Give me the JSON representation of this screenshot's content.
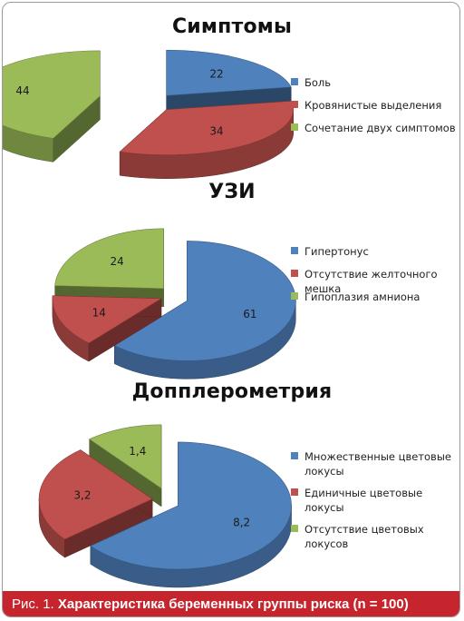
{
  "chart_data": [
    {
      "type": "pie",
      "title": "Симптомы",
      "categories": [
        "Боль",
        "Кровянистые выделения",
        "Сочетание двух симптомов"
      ],
      "values": [
        22,
        34,
        44
      ],
      "value_labels": [
        "22",
        "34",
        "44"
      ],
      "colors": [
        "#4f81bd",
        "#c0504d",
        "#9bbb59"
      ],
      "legend_position": "right"
    },
    {
      "type": "pie",
      "title": "УЗИ",
      "categories": [
        "Гипертонус",
        "Отсутствие желточного мешка",
        "Гипоплазия амниона"
      ],
      "values": [
        61,
        14,
        24
      ],
      "value_labels": [
        "61",
        "14",
        "24"
      ],
      "colors": [
        "#4f81bd",
        "#c0504d",
        "#9bbb59"
      ],
      "legend_position": "right"
    },
    {
      "type": "pie",
      "title": "Допплерометрия",
      "categories": [
        "Множественные цветовые локусы",
        "Единичные цветовые локусы",
        "Отсутствие цветовых локусов"
      ],
      "values": [
        8.2,
        3.2,
        1.4
      ],
      "value_labels": [
        "8,2",
        "3,2",
        "1,4"
      ],
      "colors": [
        "#4f81bd",
        "#c0504d",
        "#9bbb59"
      ],
      "legend_position": "right"
    }
  ],
  "caption": {
    "prefix": "Рис. 1.",
    "text": "Характеристика беременных группы риска (n = 100)"
  }
}
